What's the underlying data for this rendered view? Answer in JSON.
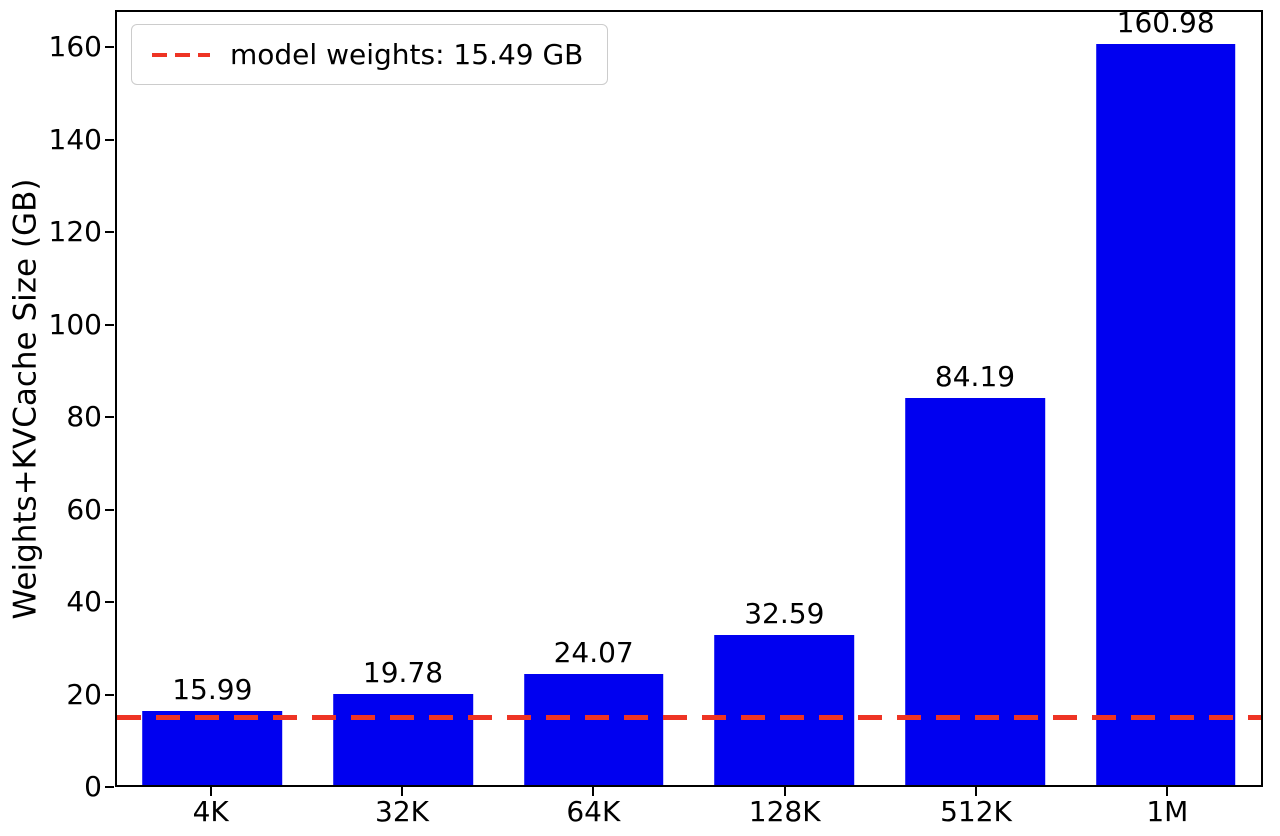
{
  "chart_data": {
    "type": "bar",
    "title": "",
    "categories": [
      "4K",
      "32K",
      "64K",
      "128K",
      "512K",
      "1M"
    ],
    "values": [
      15.99,
      19.78,
      24.07,
      32.59,
      84.19,
      160.98
    ],
    "value_labels": [
      "15.99",
      "19.78",
      "24.07",
      "32.59",
      "84.19",
      "160.98"
    ],
    "xlabel": "",
    "ylabel": "Weights+KVCache Size (GB)",
    "ylim": [
      0,
      168
    ],
    "yticks": [
      0,
      20,
      40,
      60,
      80,
      100,
      120,
      140,
      160
    ],
    "grid": false,
    "bar_color": "#0000f0",
    "bar_width_fraction": 0.122,
    "legend": {
      "position": "upper-left",
      "entries": [
        {
          "label": "model weights: 15.49 GB",
          "style": "dashed",
          "color": "#ee3424"
        }
      ]
    },
    "reference_line": {
      "value": 15.49,
      "color": "#ee3424",
      "style": "dashed",
      "label": "model weights: 15.49 GB"
    }
  }
}
